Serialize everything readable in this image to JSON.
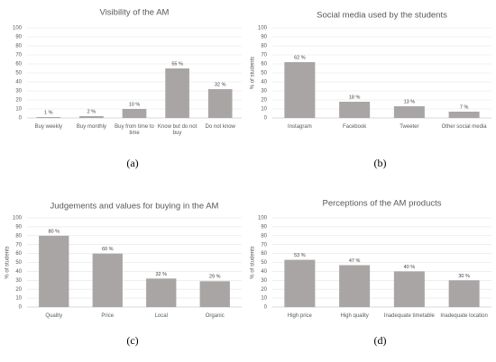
{
  "chart_data": [
    {
      "type": "bar",
      "title": "Visibility of the AM",
      "caption": "(a)",
      "categories": [
        "Buy weekly",
        "Buy monthly",
        "Buy from time to time",
        "Know but do not buy",
        "Do not know"
      ],
      "values": [
        1,
        2,
        10,
        55,
        32
      ],
      "value_labels": [
        "1 %",
        "2 %",
        "10 %",
        "55 %",
        "32 %"
      ],
      "color": "#a9a5a5",
      "ylim": [
        0,
        100
      ],
      "yticks": [
        0,
        10,
        20,
        30,
        40,
        50,
        60,
        70,
        80,
        90,
        100
      ],
      "grid": true
    },
    {
      "type": "bar",
      "title": "Social media used by the students",
      "caption": "(b)",
      "y_label": "% of students",
      "categories": [
        "Instagram",
        "Facebook",
        "Tweeter",
        "Other social media"
      ],
      "values": [
        62,
        18,
        13,
        7
      ],
      "value_labels": [
        "62 %",
        "18 %",
        "13 %",
        "7 %"
      ],
      "color": "#a9a5a5",
      "ylim": [
        0,
        100
      ],
      "yticks": [
        0,
        10,
        20,
        30,
        40,
        50,
        60,
        70,
        80,
        90,
        100
      ],
      "grid": true
    },
    {
      "type": "bar",
      "title": "Judgements and values for buying in the AM",
      "caption": "(c)",
      "y_label": "% of students",
      "categories": [
        "Quality",
        "Price",
        "Local",
        "Organic"
      ],
      "values": [
        80,
        60,
        32,
        29
      ],
      "value_labels": [
        "80 %",
        "60 %",
        "32 %",
        "29 %"
      ],
      "color": "#a9a5a5",
      "ylim": [
        0,
        100
      ],
      "yticks": [
        0,
        10,
        20,
        30,
        40,
        50,
        60,
        70,
        80,
        90,
        100
      ],
      "grid": true
    },
    {
      "type": "bar",
      "title": "Perceptions of the AM products",
      "caption": "(d)",
      "y_label": "% of students",
      "categories": [
        "High price",
        "High quality",
        "Inadequate timetable",
        "Inadequate location"
      ],
      "values": [
        53,
        47,
        40,
        30
      ],
      "value_labels": [
        "53 %",
        "47 %",
        "40 %",
        "30 %"
      ],
      "color": "#a9a5a5",
      "ylim": [
        0,
        100
      ],
      "yticks": [
        0,
        10,
        20,
        30,
        40,
        50,
        60,
        70,
        80,
        90,
        100
      ],
      "grid": true
    }
  ]
}
